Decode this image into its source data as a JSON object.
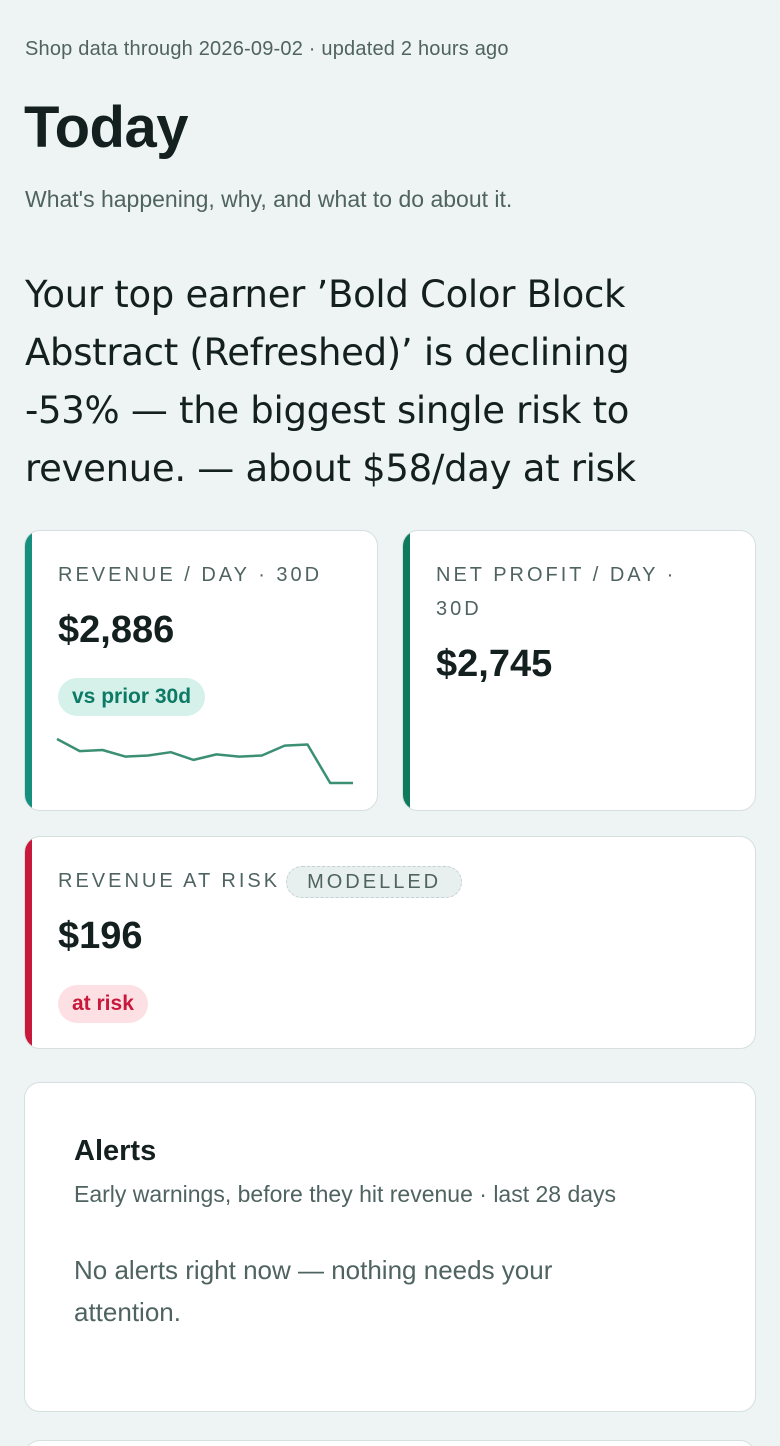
{
  "header": {
    "meta": "Shop data through 2026-09-02 · updated 2 hours ago",
    "title": "Today",
    "subtitle": "What's happening, why, and what to do about it."
  },
  "headline": "Your top earner ’Bold Color Block Abstract (Refreshed)’ is declining -53% — the biggest single risk to revenue. — about $58/day at risk",
  "kpis": {
    "revenue": {
      "label": "REVENUE / DAY · 30D",
      "value": "$2,886",
      "comparison": "vs prior 30d",
      "accent_color": "#15907e",
      "sparkline": [
        78,
        67,
        68,
        62,
        63,
        66,
        59,
        64,
        62,
        63,
        72,
        73,
        38,
        38
      ]
    },
    "net_profit": {
      "label": "NET PROFIT / DAY · 30D",
      "value": "$2,745",
      "accent_color": "#0f7a5c"
    },
    "revenue_at_risk": {
      "label": "REVENUE AT RISK",
      "badge": "MODELLED",
      "value": "$196",
      "status": "at risk",
      "accent_color": "#c8193c"
    }
  },
  "alerts": {
    "title": "Alerts",
    "subtitle": "Early warnings, before they hit revenue · last 28 days",
    "empty_message": "No alerts right now — nothing needs your attention."
  },
  "colors": {
    "background": "#eef3f3",
    "good_pill_bg": "#d5f1ea",
    "good_pill_text": "#0d7a66",
    "risk_pill_bg": "#fde0e4",
    "risk_pill_text": "#c8193c",
    "sparkline": "#3a8f74"
  }
}
